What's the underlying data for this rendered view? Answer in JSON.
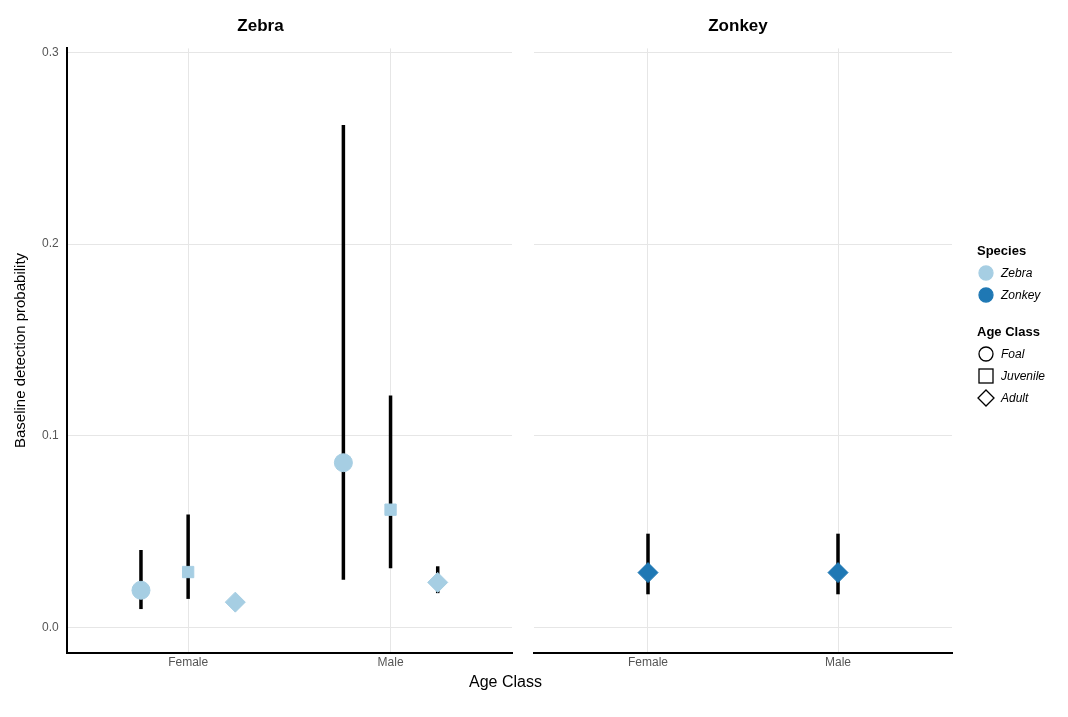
{
  "chart_data": [
    {
      "type": "scatter",
      "title": "Zebra",
      "xlabel": "Age Class",
      "ylabel": "Baseline detection probability",
      "legend_title": "Age Class",
      "legend": "right",
      "grid": true,
      "categories": [
        "Female",
        "Male"
      ],
      "ylim": [
        -0.013,
        0.302
      ],
      "yticks": [
        {
          "value": 0,
          "label": "0.0"
        },
        {
          "value": 0.1,
          "label": "0.1"
        },
        {
          "value": 0.2,
          "label": "0.2"
        },
        {
          "value": 0.3,
          "label": "0.3"
        }
      ],
      "series": [
        {
          "name": "Foal",
          "marker": "circle",
          "color": "#a6cee3",
          "values": [
            0.0195,
            0.086
          ],
          "errors": [
            [
              0.0097,
              0.0405
            ],
            [
              0.025,
              0.262
            ]
          ]
        },
        {
          "name": "Juvenile",
          "marker": "square",
          "color": "#a6cee3",
          "values": [
            0.029,
            0.0615
          ],
          "errors": [
            [
              0.015,
              0.059
            ],
            [
              0.031,
              0.121
            ]
          ]
        },
        {
          "name": "Adult",
          "marker": "diamond",
          "color": "#a6cee3",
          "values": [
            0.0133,
            0.0236
          ],
          "errors": [
            null,
            [
              0.018,
              0.032
            ]
          ]
        }
      ]
    },
    {
      "type": "scatter",
      "title": "Zonkey",
      "legend_title": "Species",
      "grid": true,
      "tick_labels": "x",
      "categories": [
        "Female",
        "Male"
      ],
      "ylim": [
        -0.013,
        0.302
      ],
      "yticks": [
        0,
        0.1,
        0.2,
        0.3
      ],
      "series": [
        {
          "marker": "diamond",
          "color": "#1f78b4",
          "values": [
            0.0287,
            0.0287
          ],
          "errors": [
            [
              0.0174,
              0.049
            ],
            [
              0.0174,
              0.049
            ]
          ]
        }
      ]
    }
  ]
}
